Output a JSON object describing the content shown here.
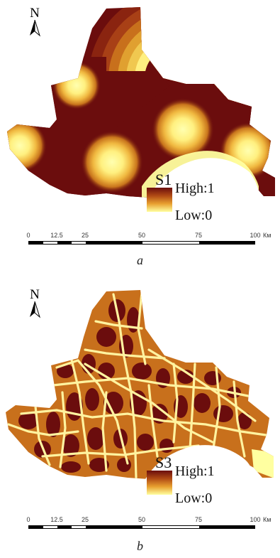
{
  "panel_a": {
    "north_label": "N",
    "legend": {
      "title": "S1",
      "high": "High:1",
      "low": "Low:0"
    },
    "scale": {
      "ticks": [
        "0",
        "12.5",
        "25",
        "50",
        "75",
        "100"
      ],
      "unit": "Км"
    },
    "caption": "a",
    "colors": {
      "high": "#6b0d0d",
      "low": "#ffffa0",
      "mid": "#d98a18"
    }
  },
  "panel_b": {
    "north_label": "N",
    "legend": {
      "title": "S3",
      "high": "High:1",
      "low": "Low:0"
    },
    "scale": {
      "ticks": [
        "0",
        "12.5",
        "25",
        "50",
        "75",
        "100"
      ],
      "unit": "Км"
    },
    "caption": "b",
    "colors": {
      "high": "#6b0d0d",
      "low": "#ffffa0",
      "road": "#fff3a0"
    }
  }
}
